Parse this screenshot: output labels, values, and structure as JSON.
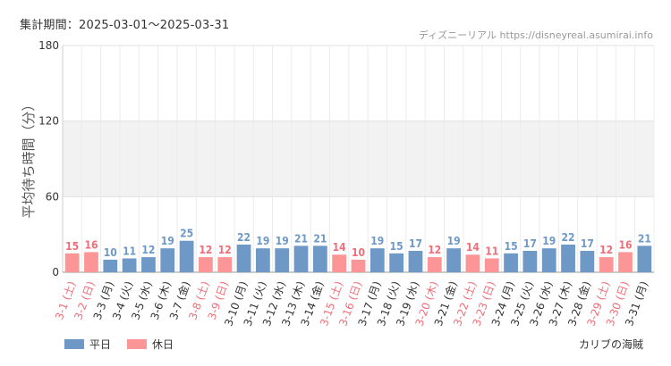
{
  "header": {
    "period_label": "集計期間：2025-03-01～2025-03-31",
    "source_label": "ディズニーリアル https://disneyreal.asumirai.info"
  },
  "legend": {
    "weekday_label": "平日",
    "holiday_label": "休日"
  },
  "footer": {
    "attraction_name": "カリブの海賊"
  },
  "colors": {
    "weekday": "#6e99c7",
    "holiday": "#fc9696",
    "weekday_label_text": "#333333",
    "holiday_label_text": "#f06e78",
    "band": "#f2f2f2"
  },
  "chart_data": {
    "type": "bar",
    "ylabel": "平均待ち時間（分）",
    "ylim": [
      0,
      180
    ],
    "yticks": [
      0,
      60,
      120,
      180
    ],
    "bands": [
      [
        60,
        120
      ]
    ],
    "legend_position": "bottom-left",
    "categories": [
      "3-1 (土)",
      "3-2 (日)",
      "3-3 (月)",
      "3-4 (火)",
      "3-5 (水)",
      "3-6 (木)",
      "3-7 (金)",
      "3-8 (土)",
      "3-9 (日)",
      "3-10 (月)",
      "3-11 (火)",
      "3-12 (水)",
      "3-13 (木)",
      "3-14 (金)",
      "3-15 (土)",
      "3-16 (日)",
      "3-17 (月)",
      "3-18 (火)",
      "3-19 (水)",
      "3-20 (木)",
      "3-21 (金)",
      "3-22 (土)",
      "3-23 (日)",
      "3-24 (月)",
      "3-25 (火)",
      "3-26 (水)",
      "3-27 (木)",
      "3-28 (金)",
      "3-29 (土)",
      "3-30 (日)",
      "3-31 (月)"
    ],
    "values": [
      15,
      16,
      10,
      11,
      12,
      19,
      25,
      12,
      12,
      22,
      19,
      19,
      21,
      21,
      14,
      10,
      19,
      15,
      17,
      12,
      19,
      14,
      11,
      15,
      17,
      19,
      22,
      17,
      12,
      16,
      21
    ],
    "day_type": [
      "休日",
      "休日",
      "平日",
      "平日",
      "平日",
      "平日",
      "平日",
      "休日",
      "休日",
      "平日",
      "平日",
      "平日",
      "平日",
      "平日",
      "休日",
      "休日",
      "平日",
      "平日",
      "平日",
      "休日",
      "平日",
      "休日",
      "休日",
      "平日",
      "平日",
      "平日",
      "平日",
      "平日",
      "休日",
      "休日",
      "平日"
    ]
  }
}
